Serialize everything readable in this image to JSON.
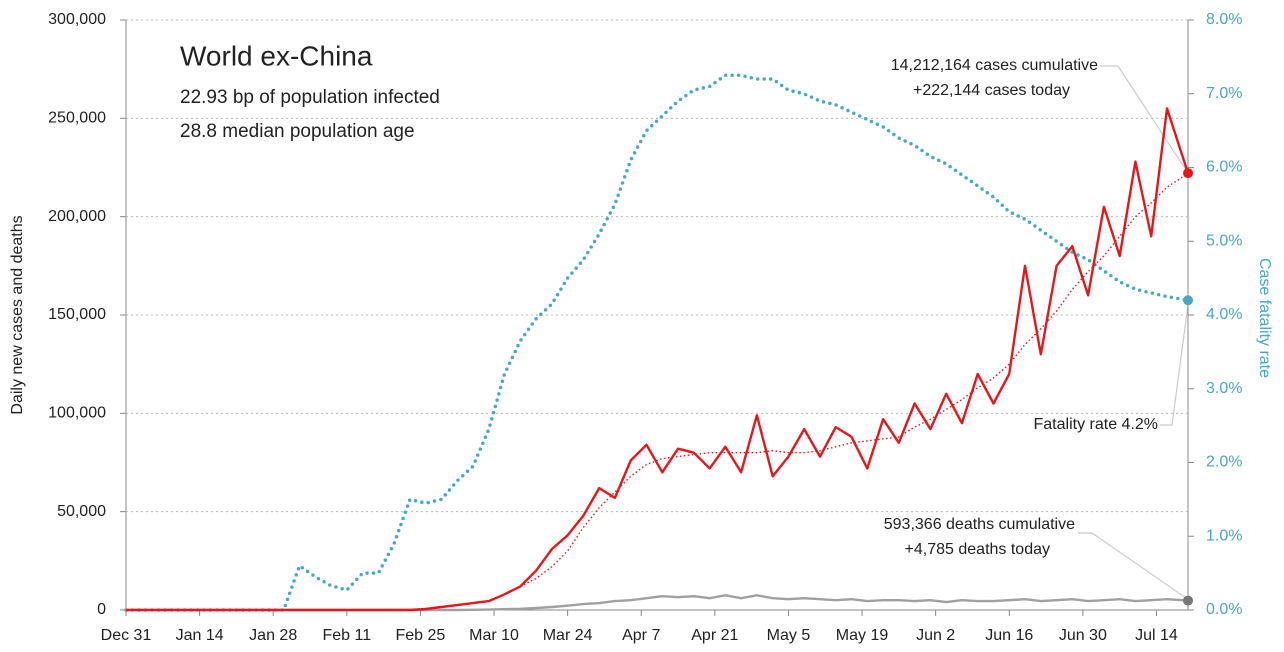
{
  "chart_data": {
    "type": "line",
    "title": "World ex-China",
    "subtitle": [
      "22.93 bp of population infected",
      "28.8 median population age"
    ],
    "ylabel": "Daily new cases and deaths",
    "y2label": "Case fatality rate",
    "annotations": [
      "14,212,164 cases cumulative",
      "+222,144 cases today",
      "Fatality rate 4.2%",
      "593,366 deaths cumulative",
      "+4,785 deaths today"
    ],
    "x": [
      0,
      3,
      6,
      9,
      12,
      15,
      18,
      21,
      24,
      27,
      30,
      33,
      36,
      39,
      42,
      45,
      48,
      51,
      54,
      57,
      60,
      63,
      66,
      69,
      72,
      75,
      78,
      81,
      84,
      87,
      90,
      93,
      96,
      99,
      102,
      105,
      108,
      111,
      114,
      117,
      120,
      123,
      126,
      129,
      132,
      135,
      138,
      141,
      144,
      147,
      150,
      153,
      156,
      159,
      162,
      165,
      168,
      171,
      174,
      177,
      180,
      183,
      186,
      189,
      192,
      195,
      198,
      202
    ],
    "xlim": [
      0,
      202
    ],
    "xticks": [
      {
        "value": 0,
        "label": "Dec 31"
      },
      {
        "value": 14,
        "label": "Jan 14"
      },
      {
        "value": 28,
        "label": "Jan 28"
      },
      {
        "value": 42,
        "label": "Feb 11"
      },
      {
        "value": 56,
        "label": "Feb 25"
      },
      {
        "value": 70,
        "label": "Mar 10"
      },
      {
        "value": 84,
        "label": "Mar 24"
      },
      {
        "value": 98,
        "label": "Apr 7"
      },
      {
        "value": 112,
        "label": "Apr 21"
      },
      {
        "value": 126,
        "label": "May 5"
      },
      {
        "value": 140,
        "label": "May 19"
      },
      {
        "value": 154,
        "label": "Jun 2"
      },
      {
        "value": 168,
        "label": "Jun 16"
      },
      {
        "value": 182,
        "label": "Jun 30"
      },
      {
        "value": 196,
        "label": "Jul 14"
      }
    ],
    "ylim": [
      0,
      300000
    ],
    "yticks": [
      0,
      {
        "value": 50000,
        "label": "50,000"
      },
      {
        "value": 100000,
        "label": "100,000"
      },
      {
        "value": 150000,
        "label": "150,000"
      },
      {
        "value": 200000,
        "label": "200,000"
      },
      {
        "value": 250000,
        "label": "250,000"
      },
      {
        "value": 300000,
        "label": "300,000"
      }
    ],
    "y2lim": [
      0,
      8
    ],
    "y2ticks": [
      {
        "value": 0,
        "label": "0.0%"
      },
      {
        "value": 1,
        "label": "1.0%"
      },
      {
        "value": 2,
        "label": "2.0%"
      },
      {
        "value": 3,
        "label": "3.0%"
      },
      {
        "value": 4,
        "label": "4.0%"
      },
      {
        "value": 5,
        "label": "5.0%"
      },
      {
        "value": 6,
        "label": "6.0%"
      },
      {
        "value": 7,
        "label": "7.0%"
      },
      {
        "value": 8,
        "label": "8.0%"
      }
    ],
    "grid": true,
    "series": [
      {
        "name": "Case fatality rate",
        "color": "#4aa8c0",
        "axis": "y2",
        "style": "dotted",
        "values": [
          0,
          0,
          0,
          0,
          0,
          0,
          0,
          0,
          0,
          0,
          0,
          0.6,
          0.45,
          0.33,
          0.27,
          0.5,
          0.5,
          0.9,
          1.5,
          1.45,
          1.5,
          1.75,
          1.95,
          2.45,
          3.2,
          3.65,
          3.95,
          4.15,
          4.5,
          4.75,
          5.1,
          5.5,
          6.1,
          6.5,
          6.7,
          6.9,
          7.05,
          7.1,
          7.25,
          7.25,
          7.2,
          7.2,
          7.05,
          7.0,
          6.9,
          6.85,
          6.75,
          6.65,
          6.55,
          6.4,
          6.3,
          6.15,
          6.05,
          5.9,
          5.75,
          5.6,
          5.4,
          5.3,
          5.15,
          5.0,
          4.85,
          4.75,
          4.6,
          4.45,
          4.35,
          4.3,
          4.25,
          4.2
        ]
      },
      {
        "name": "Daily deaths",
        "color": "#a0a0a0",
        "style": "solid",
        "values": [
          0,
          0,
          0,
          0,
          0,
          0,
          0,
          0,
          0,
          0,
          0,
          0,
          0,
          0,
          0,
          0,
          0,
          0,
          0,
          0,
          0,
          0,
          100,
          200,
          400,
          600,
          1000,
          1500,
          2200,
          3000,
          3500,
          4500,
          5000,
          6000,
          7000,
          6500,
          7000,
          6000,
          7500,
          6000,
          7500,
          6000,
          5500,
          6000,
          5500,
          5000,
          5500,
          4500,
          5000,
          5000,
          4500,
          5000,
          4000,
          5000,
          4500,
          4500,
          5000,
          5500,
          4500,
          5000,
          5500,
          4500,
          5000,
          5500,
          4500,
          5000,
          5500,
          4785
        ]
      },
      {
        "name": "Cases 7-day average",
        "color": "#e8161b",
        "style": "thin-dotted",
        "values": [
          null,
          null,
          null,
          null,
          null,
          null,
          null,
          null,
          null,
          null,
          null,
          null,
          null,
          null,
          null,
          null,
          null,
          null,
          null,
          null,
          null,
          null,
          null,
          null,
          null,
          12000,
          16000,
          22000,
          30000,
          42000,
          52000,
          60000,
          68000,
          74000,
          77000,
          78000,
          79000,
          80000,
          80000,
          80000,
          80000,
          81000,
          80000,
          80000,
          81000,
          83000,
          85000,
          86000,
          87000,
          88000,
          93000,
          97000,
          102000,
          107000,
          113000,
          118000,
          125000,
          135000,
          143000,
          152000,
          163000,
          172000,
          180000,
          190000,
          200000,
          207000,
          215000,
          222000
        ]
      },
      {
        "name": "Daily cases",
        "color": "#e8161b",
        "style": "solid",
        "values": [
          0,
          0,
          0,
          0,
          0,
          0,
          0,
          0,
          0,
          0,
          0,
          0,
          0,
          0,
          0,
          0,
          0,
          0,
          0,
          500,
          1500,
          2500,
          3500,
          4500,
          8000,
          12000,
          20000,
          31000,
          38000,
          48000,
          62000,
          57000,
          76000,
          84000,
          70000,
          82000,
          80000,
          72000,
          83000,
          70000,
          99000,
          68000,
          78000,
          92000,
          78000,
          93000,
          88000,
          72000,
          97000,
          85000,
          105000,
          92000,
          110000,
          95000,
          120000,
          105000,
          120000,
          175000,
          130000,
          175000,
          185000,
          160000,
          205000,
          180000,
          228000,
          190000,
          255000,
          222144
        ]
      }
    ]
  }
}
